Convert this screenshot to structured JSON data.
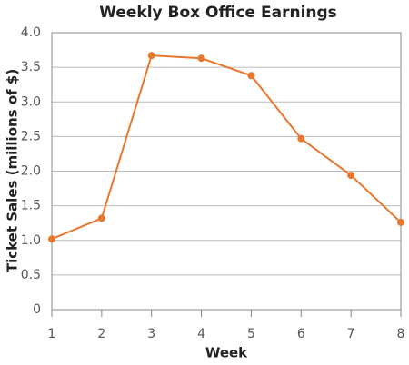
{
  "chart_data": {
    "type": "line",
    "title": "Weekly Box Office Earnings",
    "x_label": "Week",
    "y_label": "Ticket Sales (millions of $)",
    "x": [
      1,
      2,
      3,
      4,
      5,
      6,
      7,
      8
    ],
    "series": [
      {
        "color": "#e8772e",
        "values": [
          1.02,
          1.32,
          3.67,
          3.63,
          3.38,
          2.47,
          1.94,
          1.26
        ]
      }
    ],
    "xlim": [
      1,
      8
    ],
    "xticks": [
      1,
      2,
      3,
      4,
      5,
      6,
      7,
      8
    ],
    "ylim": [
      0,
      4
    ],
    "yticks": [
      0,
      0.5,
      {
        "value": 1,
        "label": "1.0"
      },
      1.5,
      {
        "value": 2,
        "label": "2.0"
      },
      2.5,
      {
        "value": 3,
        "label": "3.0"
      },
      3.5,
      {
        "value": 4,
        "label": "4.0"
      }
    ],
    "grid": true
  }
}
